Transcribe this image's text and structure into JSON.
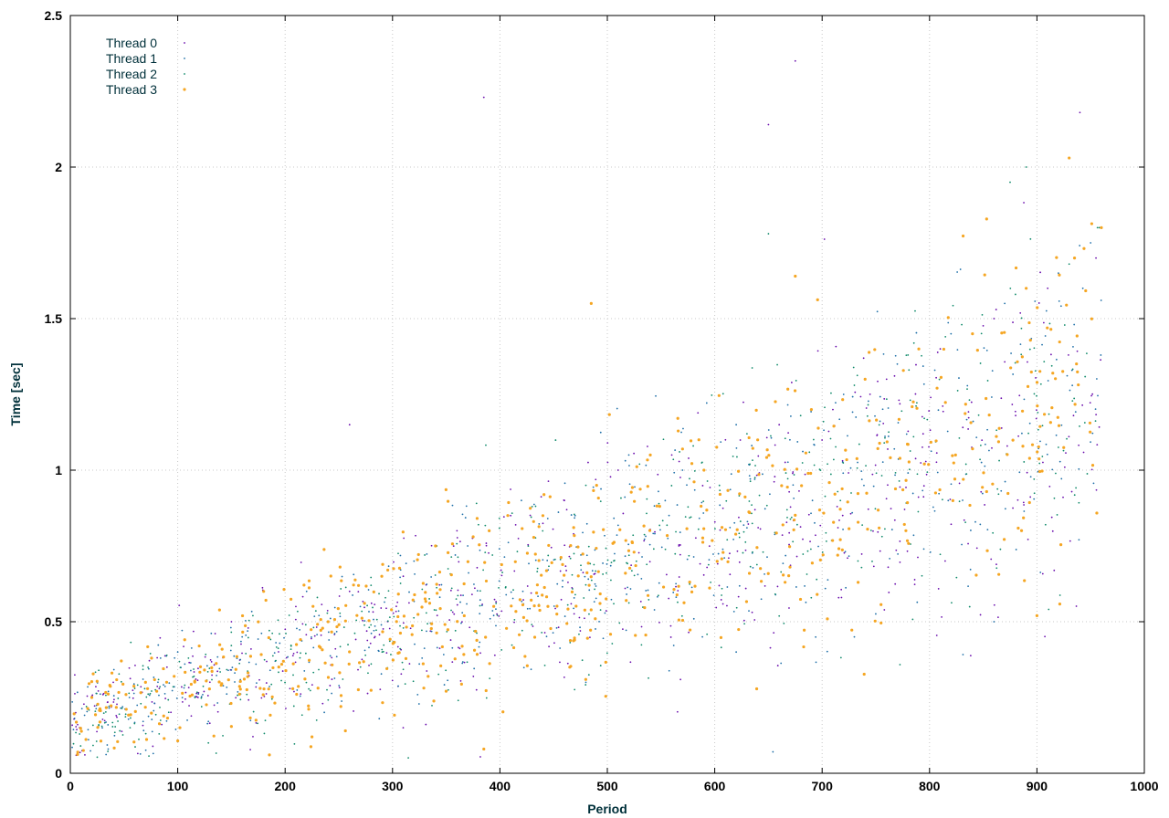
{
  "chart_data": {
    "type": "scatter",
    "title": "",
    "xlabel": "Period",
    "ylabel": "Time [sec]",
    "xlim": [
      0,
      1000
    ],
    "ylim": [
      0,
      2.5
    ],
    "xticks": [
      0,
      100,
      200,
      300,
      400,
      500,
      600,
      700,
      800,
      900,
      1000
    ],
    "yticks": [
      0,
      0.5,
      1,
      1.5,
      2,
      2.5
    ],
    "xtick_labels": [
      "0",
      "100",
      "200",
      "300",
      "400",
      "500",
      "600",
      "700",
      "800",
      "900",
      "1000"
    ],
    "ytick_labels": [
      "0",
      "0.5",
      "1",
      "1.5",
      "2",
      "2.5"
    ],
    "grid": true,
    "legend_position": "top-left",
    "series": [
      {
        "name": "Thread 0",
        "color": "#6a0dad",
        "x": [
          5,
          40,
          90,
          150,
          210,
          260,
          310,
          360,
          410,
          460,
          510,
          560,
          610,
          660,
          710,
          760,
          810,
          860,
          910,
          955,
          385,
          675,
          650,
          940,
          260
        ],
        "y": [
          0.2,
          0.3,
          0.35,
          0.5,
          0.55,
          0.6,
          0.65,
          0.8,
          0.85,
          0.9,
          1.0,
          1.05,
          1.1,
          1.15,
          1.2,
          1.3,
          1.4,
          1.5,
          1.6,
          1.7,
          2.23,
          2.35,
          2.14,
          2.18,
          1.15
        ]
      },
      {
        "name": "Thread 1",
        "color": "#1e6fa8",
        "x": [
          10,
          55,
          100,
          160,
          220,
          270,
          320,
          370,
          420,
          470,
          520,
          570,
          620,
          670,
          720,
          770,
          820,
          870,
          920,
          950,
          730,
          860,
          620,
          480
        ],
        "y": [
          0.15,
          0.25,
          0.4,
          0.45,
          0.6,
          0.55,
          0.7,
          0.75,
          0.9,
          0.85,
          1.05,
          1.0,
          1.15,
          1.1,
          1.25,
          1.35,
          1.45,
          1.55,
          1.65,
          1.75,
          0.45,
          0.5,
          0.4,
          0.3
        ]
      },
      {
        "name": "Thread 2",
        "color": "#0f8a6a",
        "x": [
          15,
          60,
          110,
          170,
          230,
          280,
          330,
          380,
          430,
          480,
          530,
          580,
          630,
          680,
          730,
          780,
          830,
          880,
          930,
          958,
          875,
          890,
          650
        ],
        "y": [
          0.22,
          0.28,
          0.38,
          0.52,
          0.58,
          0.62,
          0.72,
          0.82,
          0.88,
          0.95,
          1.02,
          1.08,
          1.12,
          1.18,
          1.28,
          1.38,
          1.48,
          1.58,
          1.68,
          1.8,
          1.95,
          2.0,
          1.78
        ]
      },
      {
        "name": "Thread 3",
        "color": "#f5a623",
        "x": [
          20,
          70,
          120,
          180,
          240,
          290,
          340,
          390,
          440,
          490,
          540,
          590,
          640,
          690,
          740,
          790,
          840,
          890,
          935,
          960,
          485,
          675,
          900,
          930,
          465,
          225,
          385
        ],
        "y": [
          0.25,
          0.3,
          0.42,
          0.6,
          0.5,
          0.65,
          0.75,
          0.8,
          0.85,
          0.95,
          1.05,
          1.0,
          1.1,
          1.2,
          1.3,
          1.4,
          1.45,
          1.6,
          1.7,
          1.8,
          1.55,
          1.64,
          0.52,
          2.03,
          0.35,
          0.12,
          0.08
        ]
      }
    ]
  }
}
